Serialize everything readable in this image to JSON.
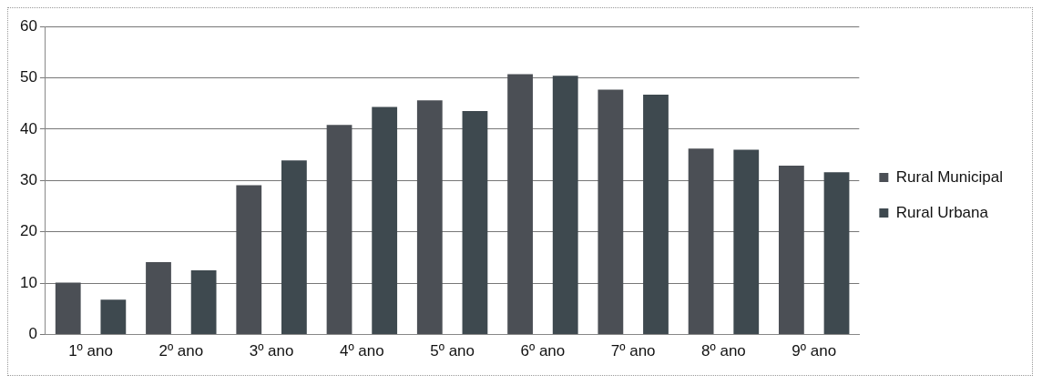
{
  "chart_data": {
    "type": "bar",
    "categories": [
      "1º ano",
      "2º ano",
      "3º ano",
      "4º ano",
      "5º ano",
      "6º ano",
      "7º ano",
      "8º ano",
      "9º ano"
    ],
    "series": [
      {
        "name": "Rural Municipal",
        "color": "#4b4f55",
        "values": [
          10.1,
          14.1,
          29.1,
          40.8,
          45.6,
          50.7,
          47.7,
          36.2,
          32.9
        ]
      },
      {
        "name": "Rural Urbana",
        "color": "#3e494f",
        "values": [
          6.8,
          12.5,
          33.9,
          44.3,
          43.5,
          50.4,
          46.7,
          36.0,
          31.6
        ]
      }
    ],
    "ylim": [
      0,
      60
    ],
    "yticks": [
      0,
      10,
      20,
      30,
      40,
      50,
      60
    ],
    "grid": "y",
    "legend": "right"
  }
}
